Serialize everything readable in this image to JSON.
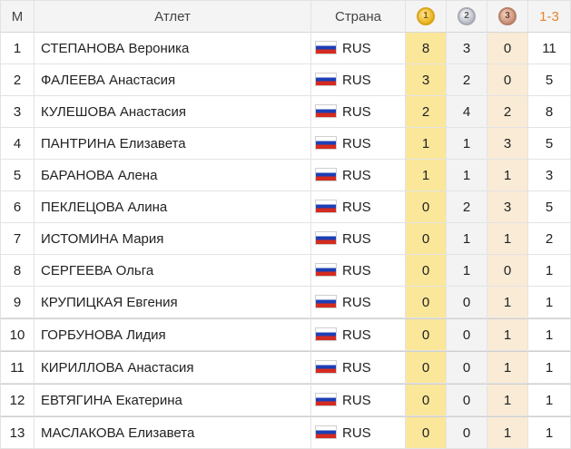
{
  "headers": {
    "rank": "М",
    "athlete": "Атлет",
    "country": "Страна",
    "gold_icon": "gold-medal-icon",
    "gold_digit": "1",
    "silver_icon": "silver-medal-icon",
    "silver_digit": "2",
    "bronze_icon": "bronze-medal-icon",
    "bronze_digit": "3",
    "total": "1-3"
  },
  "colors": {
    "gold_cell": "#fbe79a",
    "silver_cell": "#f3f3f3",
    "bronze_cell": "#faebd7",
    "total_header": "#e8842b"
  },
  "rows": [
    {
      "rank": "1",
      "name": "СТЕПАНОВА Вероника",
      "country": "RUS",
      "gold": "8",
      "silver": "3",
      "bronze": "0",
      "total": "11"
    },
    {
      "rank": "2",
      "name": "ФАЛЕЕВА Анастасия",
      "country": "RUS",
      "gold": "3",
      "silver": "2",
      "bronze": "0",
      "total": "5"
    },
    {
      "rank": "3",
      "name": "КУЛЕШОВА Анастасия",
      "country": "RUS",
      "gold": "2",
      "silver": "4",
      "bronze": "2",
      "total": "8"
    },
    {
      "rank": "4",
      "name": "ПАНТРИНА Елизавета",
      "country": "RUS",
      "gold": "1",
      "silver": "1",
      "bronze": "3",
      "total": "5"
    },
    {
      "rank": "5",
      "name": "БАРАНОВА Алена",
      "country": "RUS",
      "gold": "1",
      "silver": "1",
      "bronze": "1",
      "total": "3"
    },
    {
      "rank": "6",
      "name": "ПЕКЛЕЦОВА Алина",
      "country": "RUS",
      "gold": "0",
      "silver": "2",
      "bronze": "3",
      "total": "5"
    },
    {
      "rank": "7",
      "name": "ИСТОМИНА Мария",
      "country": "RUS",
      "gold": "0",
      "silver": "1",
      "bronze": "1",
      "total": "2"
    },
    {
      "rank": "8",
      "name": "СЕРГЕЕВА Ольга",
      "country": "RUS",
      "gold": "0",
      "silver": "1",
      "bronze": "0",
      "total": "1"
    },
    {
      "rank": "9",
      "name": "КРУПИЦКАЯ Евгения",
      "country": "RUS",
      "gold": "0",
      "silver": "0",
      "bronze": "1",
      "total": "1"
    },
    {
      "rank": "10",
      "name": "ГОРБУНОВА Лидия",
      "country": "RUS",
      "gold": "0",
      "silver": "0",
      "bronze": "1",
      "total": "1"
    },
    {
      "rank": "11",
      "name": "КИРИЛЛОВА Анастасия",
      "country": "RUS",
      "gold": "0",
      "silver": "0",
      "bronze": "1",
      "total": "1"
    },
    {
      "rank": "12",
      "name": "ЕВТЯГИНА Екатерина",
      "country": "RUS",
      "gold": "0",
      "silver": "0",
      "bronze": "1",
      "total": "1"
    },
    {
      "rank": "13",
      "name": "МАСЛАКОВА Елизавета",
      "country": "RUS",
      "gold": "0",
      "silver": "0",
      "bronze": "1",
      "total": "1"
    }
  ]
}
